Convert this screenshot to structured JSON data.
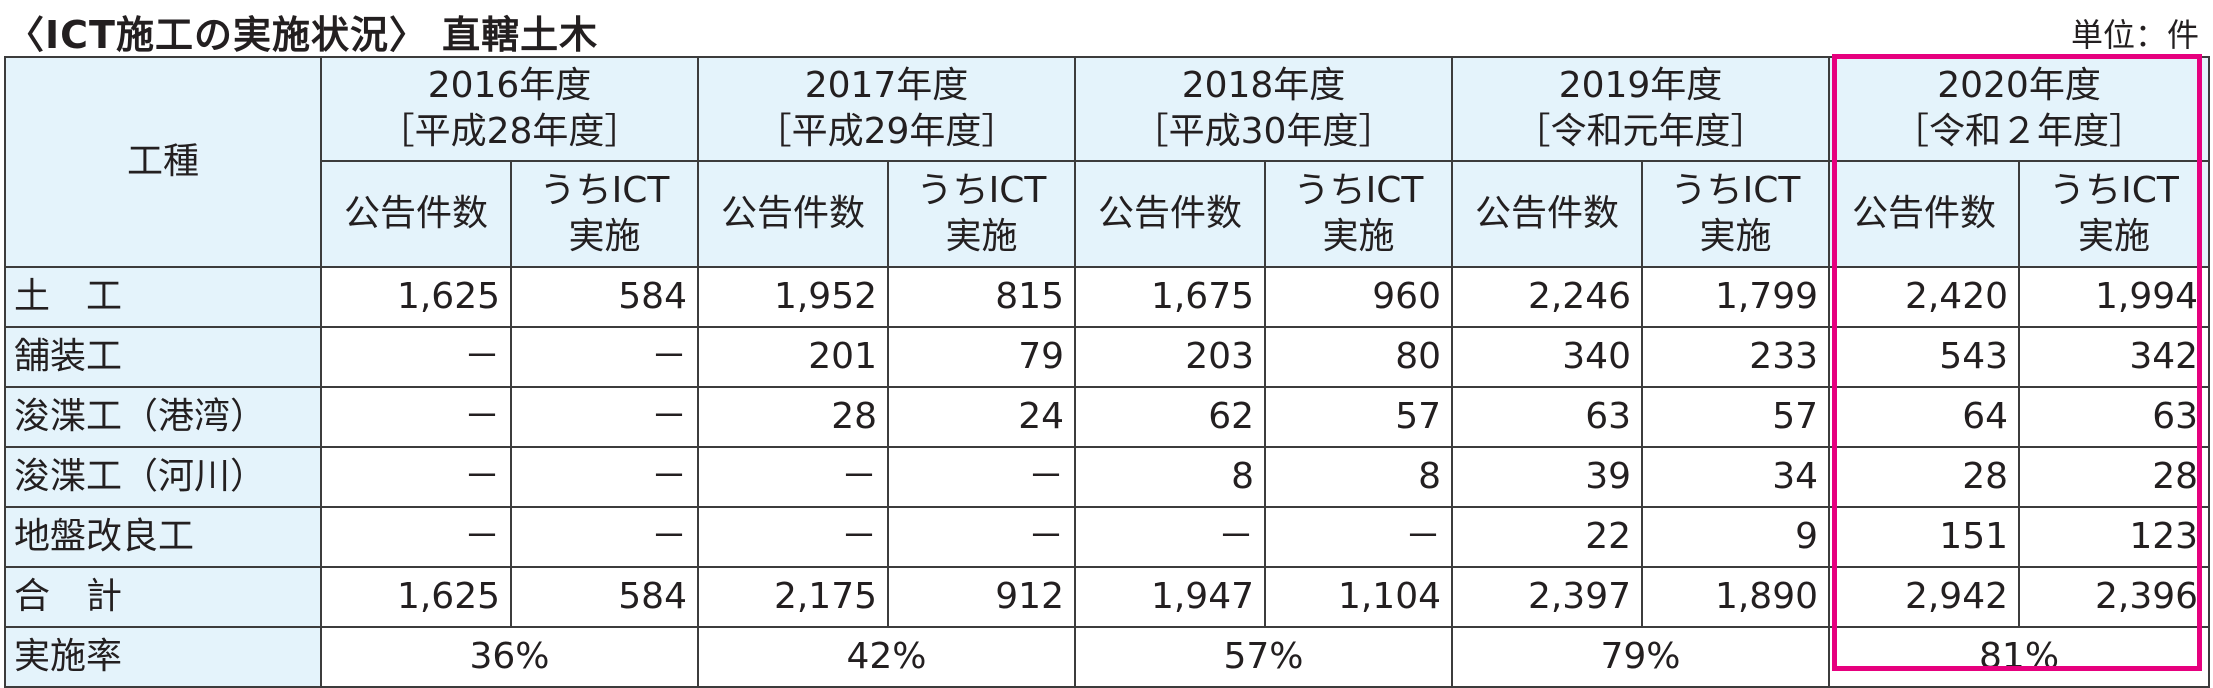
{
  "title": "〈ICT施工の実施状況〉 直轄土木",
  "unit": "単位：件",
  "header": {
    "work_type": "工種",
    "years": [
      {
        "year": "2016年度",
        "era": "［平成28年度］"
      },
      {
        "year": "2017年度",
        "era": "［平成29年度］"
      },
      {
        "year": "2018年度",
        "era": "［平成30年度］"
      },
      {
        "year": "2019年度",
        "era": "［令和元年度］"
      },
      {
        "year": "2020年度",
        "era": "［令和２年度］"
      }
    ],
    "sub_announced": "公告件数",
    "sub_ict_line1": "うちICT",
    "sub_ict_line2": "実施"
  },
  "rows": [
    {
      "name": "土　工",
      "values": [
        "1,625",
        "584",
        "1,952",
        "815",
        "1,675",
        "960",
        "2,246",
        "1,799",
        "2,420",
        "1,994"
      ]
    },
    {
      "name": "舗装工",
      "values": [
        "－",
        "－",
        "201",
        "79",
        "203",
        "80",
        "340",
        "233",
        "543",
        "342"
      ]
    },
    {
      "name": "浚渫工（港湾）",
      "values": [
        "－",
        "－",
        "28",
        "24",
        "62",
        "57",
        "63",
        "57",
        "64",
        "63"
      ]
    },
    {
      "name": "浚渫工（河川）",
      "values": [
        "－",
        "－",
        "－",
        "－",
        "8",
        "8",
        "39",
        "34",
        "28",
        "28"
      ]
    },
    {
      "name": "地盤改良工",
      "values": [
        "－",
        "－",
        "－",
        "－",
        "－",
        "－",
        "22",
        "9",
        "151",
        "123"
      ]
    },
    {
      "name": "合　計",
      "values": [
        "1,625",
        "584",
        "2,175",
        "912",
        "1,947",
        "1,104",
        "2,397",
        "1,890",
        "2,942",
        "2,396"
      ]
    }
  ],
  "rate_row": {
    "name": "実施率",
    "values": [
      "36%",
      "42%",
      "57%",
      "79%",
      "81%"
    ]
  },
  "colors": {
    "header_bg": "#e4f3fb",
    "highlight_border": "#e6007e",
    "grid": "#3c3c3c"
  }
}
